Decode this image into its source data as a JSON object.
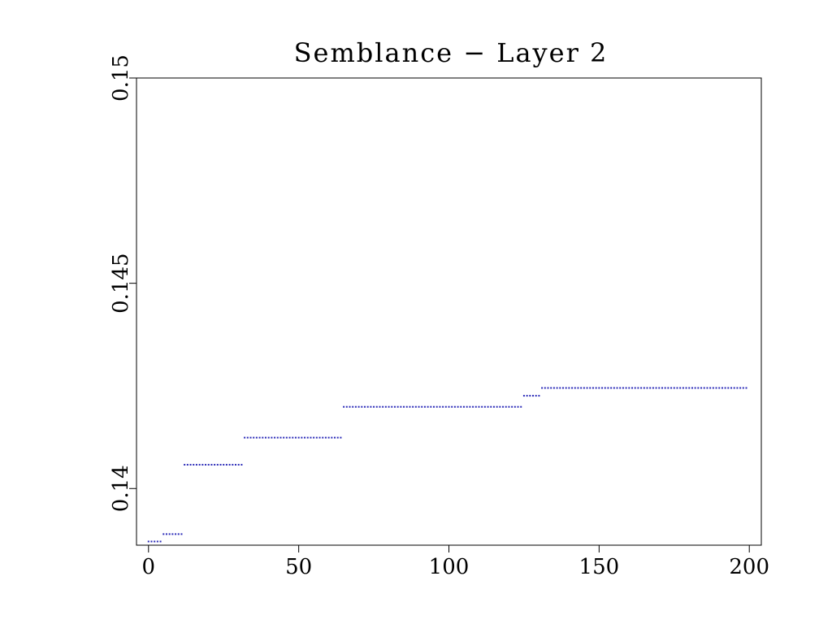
{
  "chart_data": {
    "type": "scatter",
    "title": "Semblance − Layer 2",
    "xlabel": "",
    "ylabel": "",
    "xlim": [
      -4,
      204
    ],
    "ylim": [
      0.13862,
      0.15
    ],
    "x_ticks": [
      0,
      50,
      100,
      150,
      200
    ],
    "x_tick_labels": [
      "0",
      "50",
      "100",
      "150",
      "200"
    ],
    "y_ticks": [
      0.14,
      0.145,
      0.15
    ],
    "y_tick_labels": [
      "0.14",
      "0.145",
      "0.15"
    ],
    "grid": false,
    "marker_color": "#2b2bb8",
    "segments": [
      {
        "x_start": 0,
        "x_end": 4,
        "y": 0.13871
      },
      {
        "x_start": 5,
        "x_end": 11,
        "y": 0.13889
      },
      {
        "x_start": 12,
        "x_end": 31,
        "y": 0.14058
      },
      {
        "x_start": 32,
        "x_end": 64,
        "y": 0.14124
      },
      {
        "x_start": 65,
        "x_end": 124,
        "y": 0.14199
      },
      {
        "x_start": 125,
        "x_end": 130,
        "y": 0.14226
      },
      {
        "x_start": 131,
        "x_end": 199,
        "y": 0.14245
      }
    ]
  }
}
